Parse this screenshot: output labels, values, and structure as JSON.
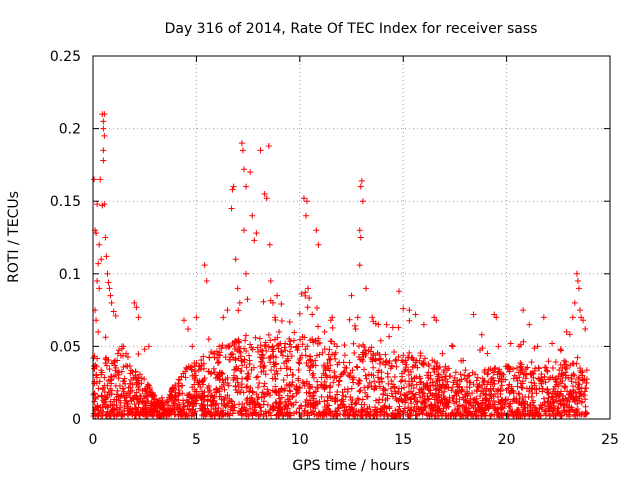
{
  "chart_data": {
    "type": "scatter",
    "title": "Day 316 of 2014, Rate Of TEC Index for receiver sass",
    "xlabel": "GPS time / hours",
    "ylabel": "ROTI / TECUs",
    "xlim": [
      0,
      25
    ],
    "ylim": [
      0,
      0.25
    ],
    "x_ticks": [
      0,
      5,
      10,
      15,
      20,
      25
    ],
    "x_tick_labels": [
      "0",
      "5",
      "10",
      "15",
      "20",
      "25"
    ],
    "y_ticks": [
      0,
      0.05,
      0.1,
      0.15,
      0.2,
      0.25
    ],
    "y_tick_labels": [
      "0",
      "0.05",
      "0.1",
      "0.15",
      "0.2",
      "0.25"
    ],
    "grid": true,
    "marker": "+",
    "color": "#ff0000",
    "series": [
      {
        "points": [
          [
            0.05,
            0.165
          ],
          [
            0.1,
            0.13
          ],
          [
            0.15,
            0.128
          ],
          [
            0.2,
            0.148
          ],
          [
            0.3,
            0.12
          ],
          [
            0.35,
            0.165
          ],
          [
            0.45,
            0.21
          ],
          [
            0.5,
            0.205
          ],
          [
            0.5,
            0.2
          ],
          [
            0.55,
            0.195
          ],
          [
            0.55,
            0.21
          ],
          [
            0.5,
            0.185
          ],
          [
            0.5,
            0.178
          ],
          [
            0.45,
            0.147
          ],
          [
            0.55,
            0.148
          ],
          [
            0.6,
            0.125
          ],
          [
            0.65,
            0.112
          ],
          [
            0.7,
            0.1
          ],
          [
            0.75,
            0.094
          ],
          [
            0.8,
            0.09
          ],
          [
            0.85,
            0.085
          ],
          [
            0.9,
            0.08
          ],
          [
            1.0,
            0.074
          ],
          [
            1.1,
            0.071
          ],
          [
            0.3,
            0.09
          ],
          [
            0.2,
            0.095
          ],
          [
            0.25,
            0.107
          ],
          [
            0.4,
            0.11
          ],
          [
            0.15,
            0.068
          ],
          [
            0.25,
            0.06
          ],
          [
            1.2,
            0.045
          ],
          [
            1.4,
            0.05
          ],
          [
            1.6,
            0.045
          ],
          [
            2.0,
            0.08
          ],
          [
            2.1,
            0.077
          ],
          [
            2.2,
            0.07
          ],
          [
            2.5,
            0.048
          ],
          [
            2.7,
            0.05
          ],
          [
            0.1,
            0.075
          ],
          [
            4.4,
            0.068
          ],
          [
            4.6,
            0.062
          ],
          [
            4.8,
            0.05
          ],
          [
            5.0,
            0.07
          ],
          [
            5.4,
            0.106
          ],
          [
            5.5,
            0.095
          ],
          [
            5.6,
            0.055
          ],
          [
            5.8,
            0.045
          ],
          [
            6.1,
            0.05
          ],
          [
            6.3,
            0.07
          ],
          [
            6.5,
            0.075
          ],
          [
            6.7,
            0.145
          ],
          [
            6.8,
            0.16
          ],
          [
            6.75,
            0.158
          ],
          [
            6.9,
            0.11
          ],
          [
            7.0,
            0.09
          ],
          [
            7.1,
            0.08
          ],
          [
            7.2,
            0.19
          ],
          [
            7.25,
            0.185
          ],
          [
            7.3,
            0.172
          ],
          [
            7.3,
            0.13
          ],
          [
            7.4,
            0.16
          ],
          [
            7.4,
            0.1
          ],
          [
            7.6,
            0.17
          ],
          [
            7.7,
            0.14
          ],
          [
            7.8,
            0.123
          ],
          [
            7.9,
            0.128
          ],
          [
            8.1,
            0.185
          ],
          [
            8.3,
            0.155
          ],
          [
            8.4,
            0.152
          ],
          [
            8.5,
            0.188
          ],
          [
            8.55,
            0.12
          ],
          [
            8.6,
            0.095
          ],
          [
            8.7,
            0.08
          ],
          [
            8.8,
            0.07
          ],
          [
            8.9,
            0.085
          ],
          [
            9.0,
            0.06
          ],
          [
            10.2,
            0.152
          ],
          [
            10.3,
            0.14
          ],
          [
            10.35,
            0.15
          ],
          [
            10.4,
            0.09
          ],
          [
            10.6,
            0.072
          ],
          [
            10.8,
            0.13
          ],
          [
            10.9,
            0.12
          ],
          [
            11.2,
            0.06
          ],
          [
            11.5,
            0.068
          ],
          [
            11.8,
            0.05
          ],
          [
            12.5,
            0.085
          ],
          [
            12.7,
            0.062
          ],
          [
            12.8,
            0.07
          ],
          [
            12.95,
            0.16
          ],
          [
            13.0,
            0.164
          ],
          [
            13.05,
            0.15
          ],
          [
            12.9,
            0.13
          ],
          [
            12.95,
            0.125
          ],
          [
            12.9,
            0.106
          ],
          [
            13.2,
            0.09
          ],
          [
            13.5,
            0.07
          ],
          [
            13.8,
            0.065
          ],
          [
            14.2,
            0.065
          ],
          [
            14.5,
            0.063
          ],
          [
            14.8,
            0.088
          ],
          [
            15.0,
            0.076
          ],
          [
            15.3,
            0.075
          ],
          [
            15.6,
            0.072
          ],
          [
            16.0,
            0.065
          ],
          [
            16.5,
            0.07
          ],
          [
            16.6,
            0.068
          ],
          [
            16.9,
            0.045
          ],
          [
            17.4,
            0.05
          ],
          [
            17.8,
            0.04
          ],
          [
            18.4,
            0.072
          ],
          [
            18.8,
            0.058
          ],
          [
            19.4,
            0.072
          ],
          [
            19.5,
            0.07
          ],
          [
            19.6,
            0.05
          ],
          [
            20.2,
            0.052
          ],
          [
            20.6,
            0.05
          ],
          [
            20.8,
            0.075
          ],
          [
            21.1,
            0.065
          ],
          [
            21.5,
            0.05
          ],
          [
            21.8,
            0.07
          ],
          [
            22.2,
            0.052
          ],
          [
            22.6,
            0.048
          ],
          [
            22.9,
            0.06
          ],
          [
            23.2,
            0.07
          ],
          [
            23.3,
            0.08
          ],
          [
            23.4,
            0.1
          ],
          [
            23.45,
            0.095
          ],
          [
            23.5,
            0.09
          ],
          [
            23.55,
            0.075
          ],
          [
            23.6,
            0.07
          ],
          [
            23.7,
            0.068
          ],
          [
            23.8,
            0.062
          ]
        ]
      }
    ],
    "density_band": {
      "description_hours": [
        [
          0,
          24
        ]
      ],
      "x_range": [
        0,
        23.9
      ],
      "envelope": [
        [
          0.0,
          0.045
        ],
        [
          1.0,
          0.04
        ],
        [
          2.0,
          0.035
        ],
        [
          2.8,
          0.02
        ],
        [
          3.1,
          0.012
        ],
        [
          3.5,
          0.01
        ],
        [
          4.0,
          0.025
        ],
        [
          4.5,
          0.035
        ],
        [
          5.0,
          0.04
        ],
        [
          6.0,
          0.045
        ],
        [
          7.0,
          0.055
        ],
        [
          8.0,
          0.06
        ],
        [
          9.0,
          0.055
        ],
        [
          10.0,
          0.058
        ],
        [
          11.0,
          0.055
        ],
        [
          12.0,
          0.05
        ],
        [
          13.0,
          0.05
        ],
        [
          14.0,
          0.045
        ],
        [
          15.0,
          0.045
        ],
        [
          16.0,
          0.042
        ],
        [
          17.0,
          0.035
        ],
        [
          18.0,
          0.03
        ],
        [
          19.0,
          0.032
        ],
        [
          20.0,
          0.035
        ],
        [
          21.0,
          0.038
        ],
        [
          22.0,
          0.035
        ],
        [
          23.0,
          0.04
        ],
        [
          23.9,
          0.035
        ]
      ]
    }
  }
}
